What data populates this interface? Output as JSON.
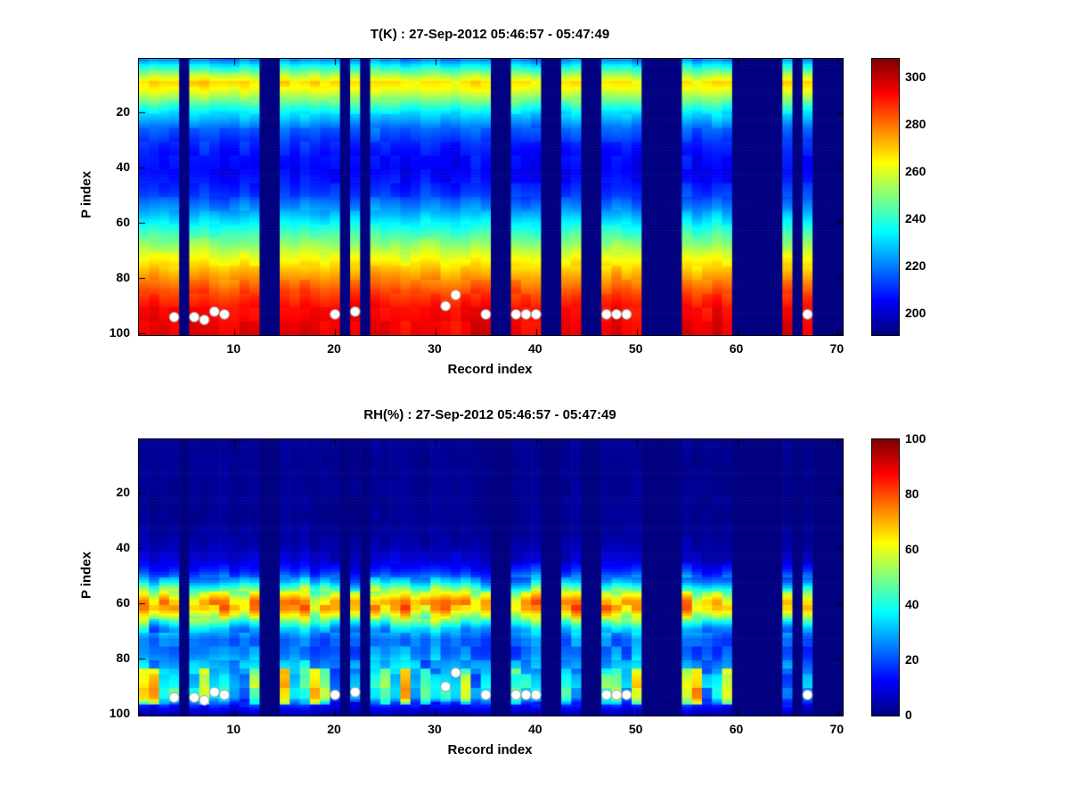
{
  "page": {
    "background": "#ffffff"
  },
  "chart_data": [
    {
      "type": "heatmap",
      "title": "T(K) : 27-Sep-2012 05:46:57 - 05:47:49",
      "xlabel": "Record index",
      "ylabel": "P index",
      "x_range": [
        1,
        70
      ],
      "y_range": [
        1,
        100
      ],
      "x_ticks": [
        10,
        20,
        30,
        40,
        50,
        60,
        70
      ],
      "y_ticks": [
        20,
        40,
        60,
        80,
        100
      ],
      "colormap": "jet",
      "value_units": "K",
      "value_range": [
        191,
        308
      ],
      "colorbar_ticks": [
        200,
        220,
        240,
        260,
        280,
        300
      ],
      "legend_position": "right-colorbar",
      "grid": false,
      "profile_p": [
        1,
        3,
        6,
        9,
        12,
        16,
        20,
        26,
        33,
        42,
        50,
        57,
        63,
        70,
        77,
        84,
        91,
        100
      ],
      "profile_value": [
        222,
        234,
        252,
        268,
        262,
        247,
        232,
        217,
        208,
        205,
        213,
        227,
        241,
        257,
        271,
        284,
        293,
        296
      ],
      "noise_cell": 2.5,
      "noise_col": 2.5,
      "scale_noise_by_value": false,
      "missing_records": [
        5,
        13,
        14,
        21,
        23,
        36,
        37,
        41,
        42,
        45,
        46,
        51,
        52,
        53,
        54,
        60,
        61,
        62,
        63,
        64,
        66,
        68,
        69,
        70
      ],
      "markers": [
        [
          4,
          94
        ],
        [
          6,
          94
        ],
        [
          7,
          95
        ],
        [
          8,
          92
        ],
        [
          9,
          93
        ],
        [
          20,
          93
        ],
        [
          22,
          92
        ],
        [
          31,
          90
        ],
        [
          32,
          86
        ],
        [
          35,
          93
        ],
        [
          38,
          93
        ],
        [
          39,
          93
        ],
        [
          40,
          93
        ],
        [
          47,
          93
        ],
        [
          48,
          93
        ],
        [
          49,
          93
        ],
        [
          67,
          93
        ]
      ]
    },
    {
      "type": "heatmap",
      "title": "RH(%) : 27-Sep-2012 05:46:57 - 05:47:49",
      "xlabel": "Record index",
      "ylabel": "P index",
      "x_range": [
        1,
        70
      ],
      "y_range": [
        1,
        100
      ],
      "x_ticks": [
        10,
        20,
        30,
        40,
        50,
        60,
        70
      ],
      "y_ticks": [
        20,
        40,
        60,
        80,
        100
      ],
      "colormap": "jet",
      "value_units": "%",
      "value_range": [
        0,
        100
      ],
      "colorbar_ticks": [
        0,
        20,
        40,
        60,
        80,
        100
      ],
      "legend_position": "right-colorbar",
      "grid": false,
      "profile_p": [
        1,
        30,
        38,
        44,
        48,
        52,
        56,
        59,
        62,
        65,
        69,
        73,
        78,
        82,
        86,
        90,
        94,
        97,
        100
      ],
      "profile_value": [
        2,
        2,
        4,
        8,
        16,
        30,
        55,
        70,
        71,
        55,
        32,
        22,
        24,
        30,
        34,
        38,
        36,
        15,
        4
      ],
      "noise_cell": 6,
      "noise_col": 5,
      "scale_noise_by_value": true,
      "enhanced_band": {
        "p": [
          84,
          96
        ],
        "amplitude": 55
      },
      "missing_records": [
        5,
        13,
        14,
        21,
        23,
        36,
        37,
        41,
        42,
        45,
        46,
        51,
        52,
        53,
        54,
        60,
        61,
        62,
        63,
        64,
        66,
        68,
        69,
        70
      ],
      "markers": [
        [
          4,
          94
        ],
        [
          6,
          94
        ],
        [
          7,
          95
        ],
        [
          8,
          92
        ],
        [
          9,
          93
        ],
        [
          20,
          93
        ],
        [
          22,
          92
        ],
        [
          31,
          90
        ],
        [
          32,
          85
        ],
        [
          35,
          93
        ],
        [
          38,
          93
        ],
        [
          39,
          93
        ],
        [
          40,
          93
        ],
        [
          47,
          93
        ],
        [
          48,
          93
        ],
        [
          49,
          93
        ],
        [
          67,
          93
        ]
      ]
    }
  ]
}
